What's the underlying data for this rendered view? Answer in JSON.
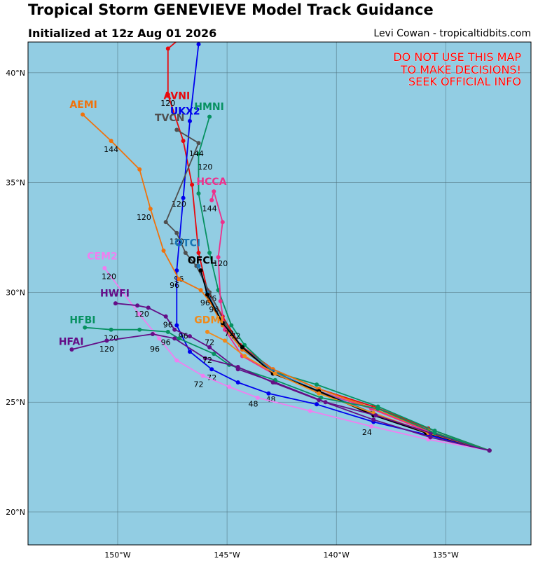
{
  "header": {
    "title": "Tropical Storm GENEVIEVE Model Track Guidance",
    "subtitle": "Initialized at 12z Aug 01 2026",
    "credit": "Levi Cowan - tropicaltidbits.com"
  },
  "warning": [
    "DO NOT USE THIS MAP",
    "TO MAKE DECISIONS!",
    "SEEK OFFICIAL INFO"
  ],
  "colors": {
    "ocean": "#92cde3",
    "grid": "#4a6c78",
    "warning": "#ff0000"
  },
  "chart_data": {
    "type": "map-tracks",
    "projection": "plate-carree",
    "extent": {
      "lon": [
        -154.1,
        -131.1
      ],
      "lat": [
        18.5,
        41.4
      ]
    },
    "lon_ticks": [
      {
        "value": -150,
        "label": "150°W"
      },
      {
        "value": -145,
        "label": "145°W"
      },
      {
        "value": -140,
        "label": "140°W"
      },
      {
        "value": -135,
        "label": "135°W"
      }
    ],
    "lat_ticks": [
      {
        "value": 20,
        "label": "20°N"
      },
      {
        "value": 25,
        "label": "25°N"
      },
      {
        "value": 30,
        "label": "30°N"
      },
      {
        "value": 35,
        "label": "35°N"
      },
      {
        "value": 40,
        "label": "40°N"
      }
    ],
    "grid": true,
    "models": [
      {
        "name": "AVNI",
        "color": "#e8080c",
        "label_at": [
          -147.9,
          38.8
        ],
        "points": [
          [
            -133,
            22.8
          ],
          [
            -135.8,
            23.8
          ],
          [
            -138.3,
            24.8
          ],
          [
            -140.8,
            25.6
          ],
          [
            -142.9,
            26.5
          ],
          [
            -144.4,
            27.6
          ],
          [
            -145.2,
            28.9
          ],
          [
            -145.9,
            30.1
          ],
          [
            -146.3,
            31.8
          ],
          [
            -146.6,
            34.9
          ],
          [
            -147.0,
            36.9
          ],
          [
            -147.7,
            39.0
          ],
          [
            -147.7,
            41.1
          ],
          [
            -147.1,
            41.6
          ]
        ],
        "hour_labels": [
          {
            "text": "120",
            "at": [
              -147.7,
              38.5
            ]
          }
        ]
      },
      {
        "name": "UKX2",
        "color": "#0000ee",
        "label_at": [
          -147.6,
          38.1
        ],
        "points": [
          [
            -133,
            22.8
          ],
          [
            -135.8,
            23.5
          ],
          [
            -138.3,
            24.1
          ],
          [
            -140.9,
            24.9
          ],
          [
            -143.1,
            25.4
          ],
          [
            -144.5,
            25.9
          ],
          [
            -145.7,
            26.5
          ],
          [
            -146.7,
            27.3
          ],
          [
            -147.3,
            28.5
          ],
          [
            -147.3,
            31.0
          ],
          [
            -147.0,
            34.3
          ],
          [
            -146.7,
            37.8
          ],
          [
            -146.3,
            41.3
          ]
        ],
        "hour_labels": [
          {
            "text": "72",
            "at": [
              -145.7,
              26.0
            ]
          },
          {
            "text": "48",
            "at": [
              -143.0,
              25.0
            ]
          },
          {
            "text": "120",
            "at": [
              -147.2,
              33.9
            ]
          },
          {
            "text": "96",
            "at": [
              -147.2,
              30.5
            ]
          }
        ]
      },
      {
        "name": "HMNI",
        "color": "#079161",
        "label_at": [
          -146.5,
          38.3
        ],
        "points": [
          [
            -133,
            22.8
          ],
          [
            -135.5,
            23.7
          ],
          [
            -138.1,
            24.8
          ],
          [
            -140.9,
            25.8
          ],
          [
            -142.9,
            26.4
          ],
          [
            -144.2,
            27.6
          ],
          [
            -144.8,
            28.5
          ],
          [
            -145.4,
            30.1
          ],
          [
            -145.8,
            31.8
          ],
          [
            -146.3,
            34.5
          ],
          [
            -146.3,
            36.3
          ],
          [
            -145.8,
            38.0
          ]
        ],
        "hour_labels": [
          {
            "text": "96",
            "at": [
              -145.7,
              29.6
            ]
          }
        ]
      },
      {
        "name": "TVCN",
        "color": "#4f4f4f",
        "label_at": [
          -148.3,
          37.8
        ],
        "points": [
          [
            -133,
            22.8
          ],
          [
            -135.9,
            23.6
          ],
          [
            -138.4,
            24.5
          ],
          [
            -140.9,
            25.5
          ],
          [
            -142.9,
            26.4
          ],
          [
            -144.3,
            27.4
          ],
          [
            -145.1,
            28.6
          ],
          [
            -145.8,
            30.0
          ],
          [
            -146.4,
            31.2
          ],
          [
            -146.9,
            31.8
          ],
          [
            -147.3,
            32.7
          ],
          [
            -147.8,
            33.2
          ],
          [
            -146.3,
            36.8
          ],
          [
            -147.3,
            37.4
          ]
        ],
        "hour_labels": [
          {
            "text": "144",
            "at": [
              -146.4,
              36.2
            ]
          },
          {
            "text": "120",
            "at": [
              -146.0,
              35.6
            ]
          },
          {
            "text": "120",
            "at": [
              -147.3,
              32.2
            ]
          }
        ]
      },
      {
        "name": "AEMI",
        "color": "#f0720c",
        "label_at": [
          -152.2,
          38.4
        ],
        "points": [
          [
            -133,
            22.8
          ],
          [
            -135.8,
            23.7
          ],
          [
            -138.3,
            24.7
          ],
          [
            -140.8,
            25.6
          ],
          [
            -142.9,
            26.5
          ],
          [
            -144.3,
            27.4
          ],
          [
            -145.2,
            28.5
          ],
          [
            -145.8,
            29.6
          ],
          [
            -146.2,
            30.1
          ],
          [
            -147.2,
            30.6
          ],
          [
            -147.9,
            31.9
          ],
          [
            -148.5,
            33.8
          ],
          [
            -149.0,
            35.6
          ],
          [
            -150.3,
            36.9
          ],
          [
            -151.6,
            38.1
          ]
        ],
        "hour_labels": [
          {
            "text": "144",
            "at": [
              -150.3,
              36.4
            ]
          },
          {
            "text": "120",
            "at": [
              -148.8,
              33.3
            ]
          },
          {
            "text": "96",
            "at": [
              -147.4,
              30.2
            ]
          }
        ]
      },
      {
        "name": "HCCA",
        "color": "#ee2f8b",
        "label_at": [
          -146.4,
          34.9
        ],
        "points": [
          [
            -133,
            22.8
          ],
          [
            -135.9,
            23.7
          ],
          [
            -138.4,
            24.7
          ],
          [
            -140.8,
            25.5
          ],
          [
            -142.9,
            26.3
          ],
          [
            -144.3,
            27.1
          ],
          [
            -145.1,
            28.3
          ],
          [
            -145.3,
            29.6
          ],
          [
            -145.4,
            31.6
          ],
          [
            -145.2,
            33.2
          ],
          [
            -145.6,
            34.6
          ],
          [
            -145.7,
            34.2
          ]
        ],
        "hour_labels": [
          {
            "text": "144",
            "at": [
              -145.8,
              33.7
            ]
          },
          {
            "text": "120",
            "at": [
              -145.3,
              31.2
            ]
          },
          {
            "text": "96",
            "at": [
              -145.6,
              29.1
            ]
          },
          {
            "text": "72",
            "at": [
              -144.6,
              27.9
            ]
          }
        ]
      },
      {
        "name": "CEM2",
        "color": "#f07ef0",
        "label_at": [
          -151.4,
          31.5
        ],
        "points": [
          [
            -133,
            22.8
          ],
          [
            -135.8,
            23.3
          ],
          [
            -138.4,
            23.9
          ],
          [
            -141.2,
            24.6
          ],
          [
            -143.6,
            25.2
          ],
          [
            -144.9,
            25.7
          ],
          [
            -146.1,
            26.2
          ],
          [
            -147.3,
            26.9
          ],
          [
            -148.1,
            27.9
          ],
          [
            -149.0,
            29.0
          ],
          [
            -150.6,
            31.1
          ]
        ],
        "hour_labels": [
          {
            "text": "24",
            "at": [
              -138.6,
              23.5
            ]
          },
          {
            "text": "48",
            "at": [
              -143.8,
              24.8
            ]
          },
          {
            "text": "72",
            "at": [
              -146.3,
              25.7
            ]
          },
          {
            "text": "120",
            "at": [
              -150.4,
              30.6
            ]
          }
        ]
      },
      {
        "name": "OTCI",
        "color": "#1a77b5",
        "label_at": [
          -147.4,
          32.1
        ],
        "points": [
          [
            -133,
            22.8
          ],
          [
            -135.9,
            23.6
          ],
          [
            -138.3,
            24.5
          ],
          [
            -140.8,
            25.5
          ],
          [
            -142.9,
            26.4
          ],
          [
            -144.3,
            27.5
          ],
          [
            -145.2,
            28.6
          ],
          [
            -145.9,
            30.0
          ],
          [
            -146.3,
            31.2
          ]
        ],
        "hour_labels": []
      },
      {
        "name": "OFCL",
        "color": "#000000",
        "label_at": [
          -146.8,
          31.3
        ],
        "points": [
          [
            -133,
            22.8
          ],
          [
            -135.9,
            23.6
          ],
          [
            -138.3,
            24.4
          ],
          [
            -140.8,
            25.5
          ],
          [
            -142.9,
            26.3
          ],
          [
            -144.3,
            27.5
          ],
          [
            -145.2,
            28.6
          ],
          [
            -145.9,
            29.9
          ],
          [
            -146.2,
            31.0
          ]
        ],
        "hour_labels": [
          {
            "text": "72",
            "at": [
              -144.9,
              28.0
            ]
          },
          {
            "text": "96",
            "at": [
              -146.0,
              29.4
            ]
          }
        ]
      },
      {
        "name": "GDMI",
        "color": "#f08a1a",
        "label_at": [
          -146.5,
          28.6
        ],
        "points": [
          [
            -133,
            22.8
          ],
          [
            -135.8,
            23.6
          ],
          [
            -138.3,
            24.5
          ],
          [
            -140.8,
            25.4
          ],
          [
            -142.8,
            26.3
          ],
          [
            -144.2,
            27.1
          ],
          [
            -145.1,
            27.8
          ],
          [
            -145.9,
            28.2
          ]
        ],
        "hour_labels": [
          {
            "text": "72",
            "at": [
              -145.8,
              27.6
            ]
          }
        ]
      },
      {
        "name": "HWFI",
        "color": "#640e87",
        "label_at": [
          -150.8,
          29.8
        ],
        "points": [
          [
            -133,
            22.8
          ],
          [
            -135.7,
            23.6
          ],
          [
            -138.2,
            24.4
          ],
          [
            -140.5,
            25.0
          ],
          [
            -142.8,
            25.9
          ],
          [
            -144.5,
            26.5
          ],
          [
            -145.8,
            27.5
          ],
          [
            -146.7,
            28.0
          ],
          [
            -147.4,
            28.3
          ],
          [
            -147.8,
            28.9
          ],
          [
            -148.6,
            29.3
          ],
          [
            -149.1,
            29.4
          ],
          [
            -150.1,
            29.5
          ]
        ],
        "hour_labels": [
          {
            "text": "120",
            "at": [
              -148.9,
              28.9
            ]
          },
          {
            "text": "96",
            "at": [
              -147.7,
              28.4
            ]
          },
          {
            "text": "96",
            "at": [
              -147.0,
              27.9
            ]
          }
        ]
      },
      {
        "name": "HFBI",
        "color": "#079161",
        "label_at": [
          -152.2,
          28.6
        ],
        "points": [
          [
            -133,
            22.8
          ],
          [
            -135.5,
            23.6
          ],
          [
            -138.1,
            24.7
          ],
          [
            -140.7,
            25.2
          ],
          [
            -142.8,
            26.0
          ],
          [
            -144.9,
            26.7
          ],
          [
            -145.6,
            27.2
          ],
          [
            -147.2,
            27.9
          ],
          [
            -147.7,
            28.2
          ],
          [
            -149.0,
            28.3
          ],
          [
            -150.3,
            28.3
          ],
          [
            -151.5,
            28.4
          ]
        ],
        "hour_labels": [
          {
            "text": "120",
            "at": [
              -150.3,
              27.8
            ]
          },
          {
            "text": "96",
            "at": [
              -147.8,
              27.6
            ]
          }
        ]
      },
      {
        "name": "HFAI",
        "color": "#640e87",
        "label_at": [
          -152.7,
          27.6
        ],
        "points": [
          [
            -133,
            22.8
          ],
          [
            -135.7,
            23.4
          ],
          [
            -138.3,
            24.2
          ],
          [
            -140.8,
            25.1
          ],
          [
            -142.9,
            25.9
          ],
          [
            -144.5,
            26.6
          ],
          [
            -146.0,
            27.0
          ],
          [
            -147.4,
            27.9
          ],
          [
            -148.4,
            28.1
          ],
          [
            -150.5,
            27.8
          ],
          [
            -152.1,
            27.4
          ]
        ],
        "hour_labels": [
          {
            "text": "72",
            "at": [
              -145.9,
              26.8
            ]
          },
          {
            "text": "120",
            "at": [
              -150.5,
              27.3
            ]
          },
          {
            "text": "96",
            "at": [
              -148.3,
              27.3
            ]
          }
        ]
      }
    ]
  }
}
